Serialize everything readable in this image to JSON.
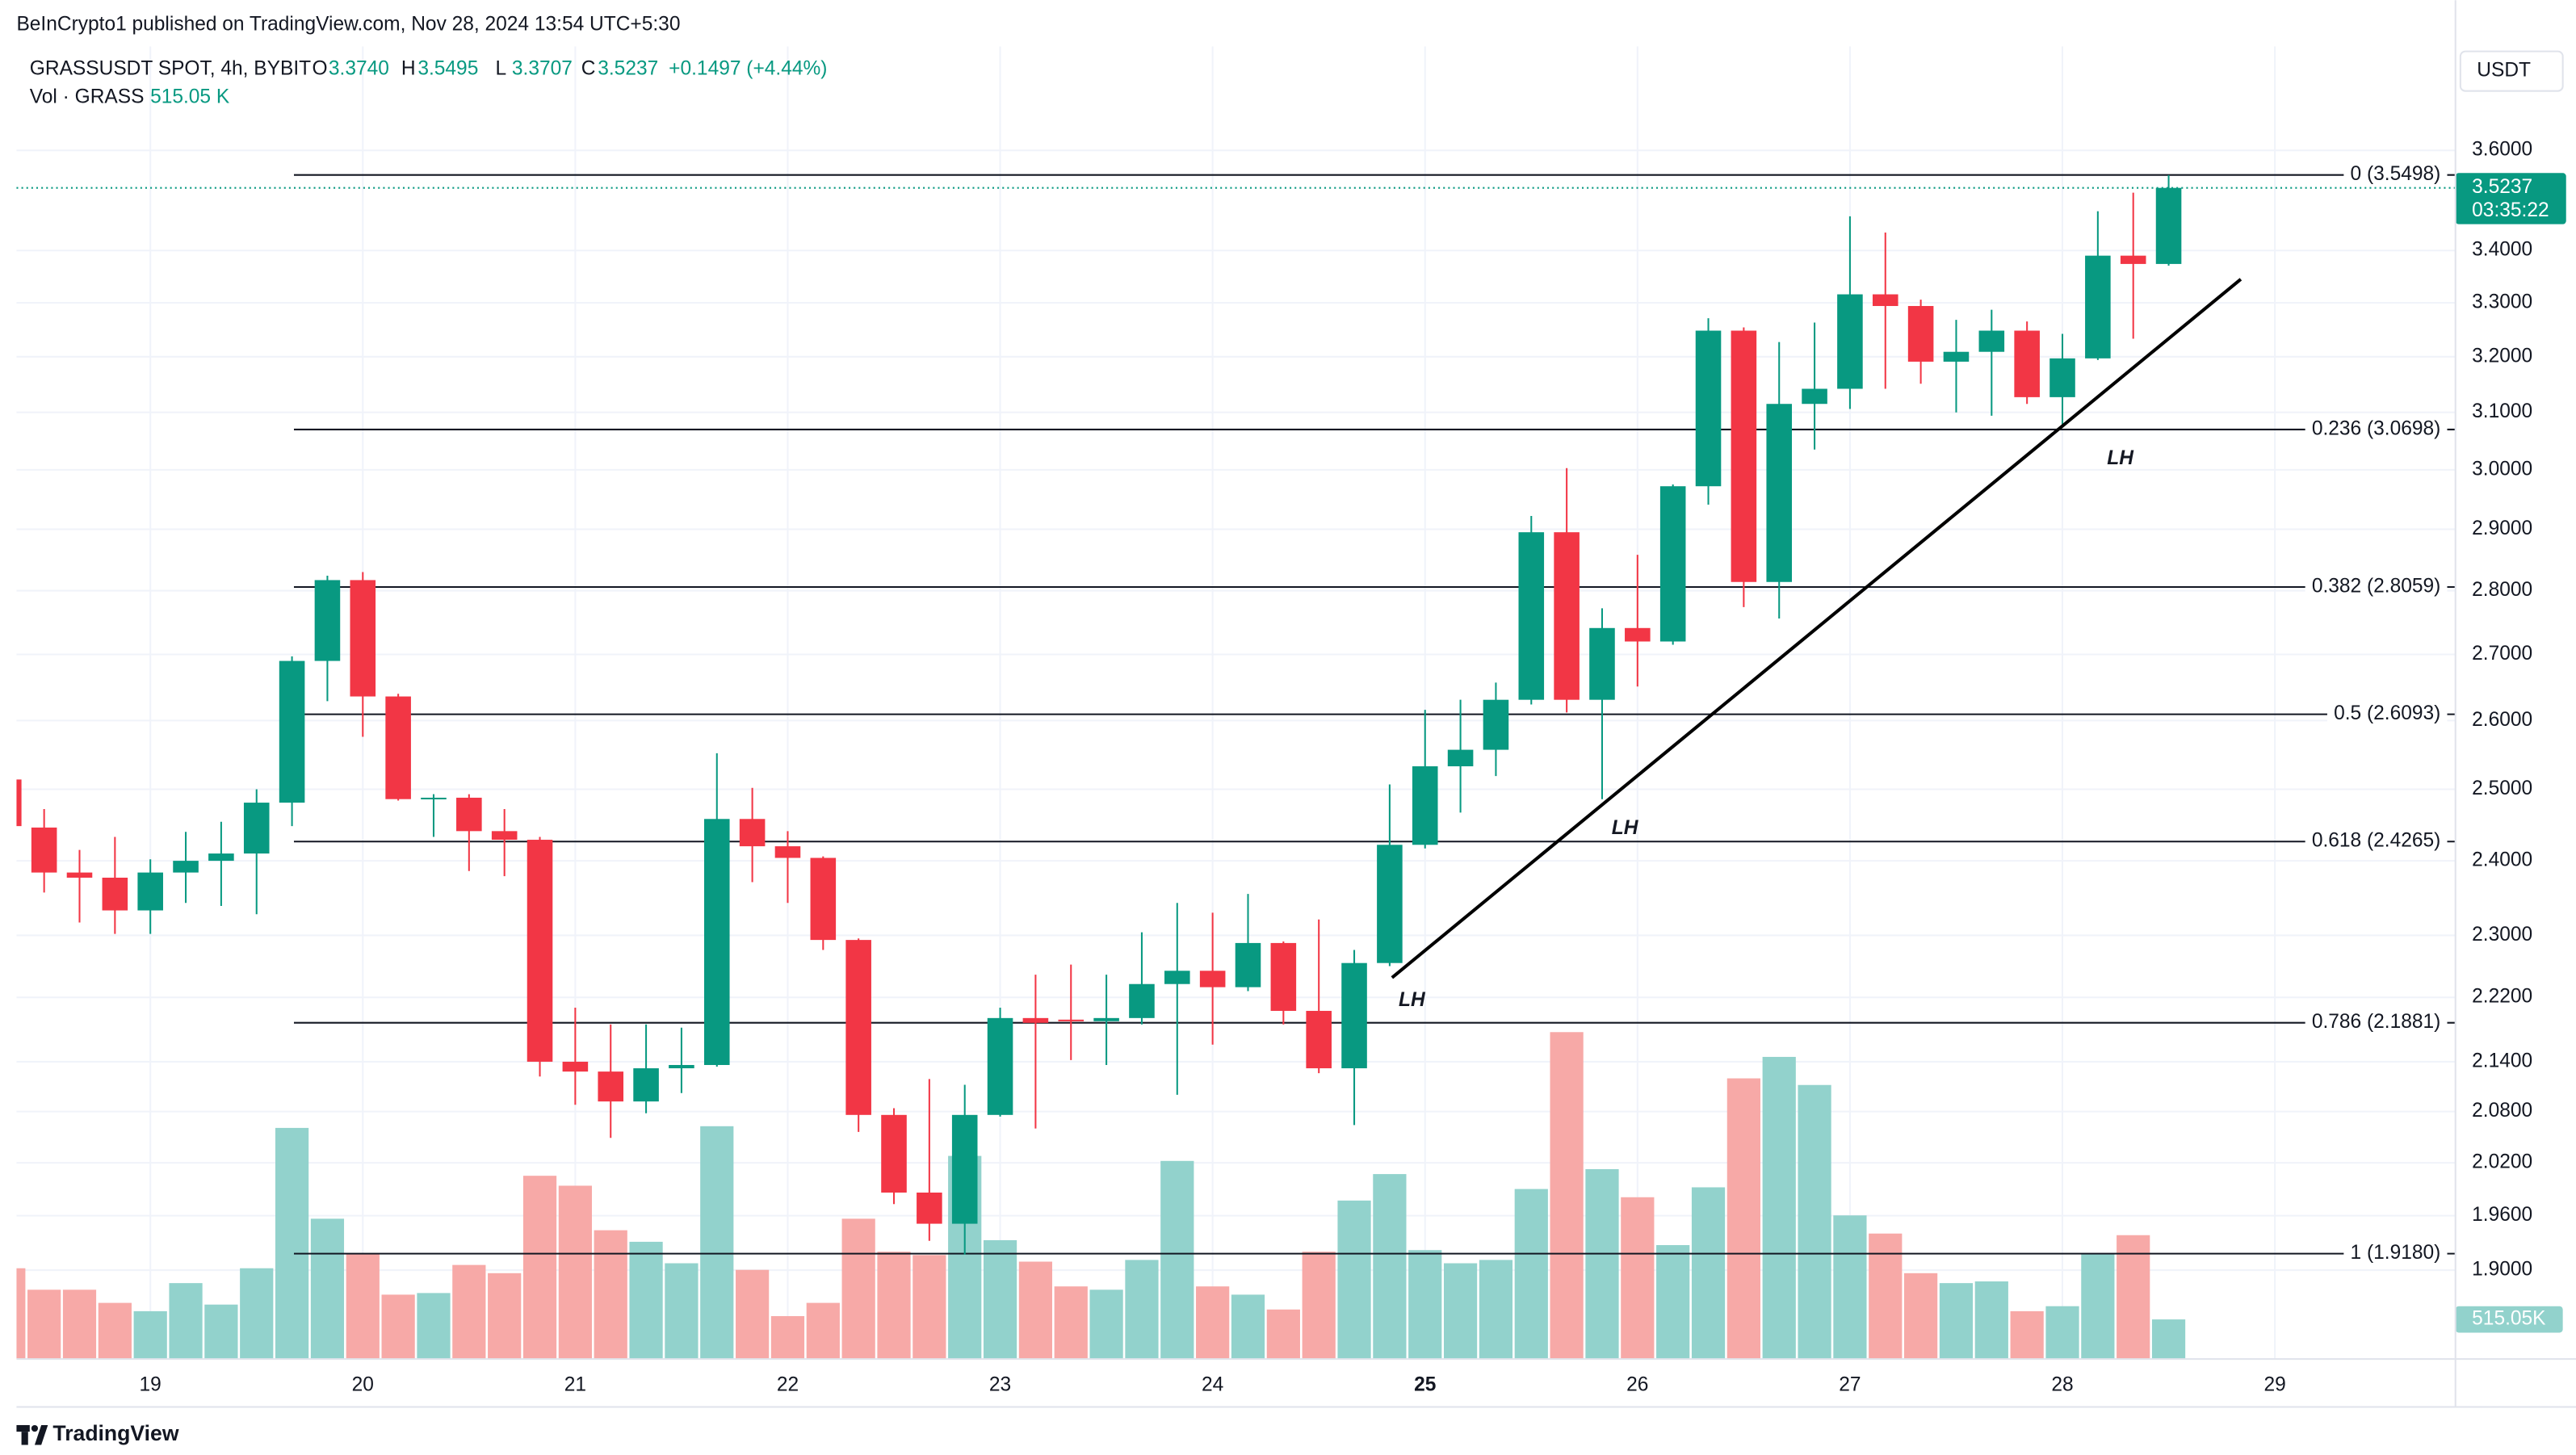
{
  "header": {
    "published": "BeInCrypto1 published on TradingView.com, Nov 28, 2024 13:54 UTC+5:30",
    "symbol": "GRASSUSDT SPOT, 4h, BYBIT",
    "ohlc": [
      {
        "key": "O",
        "value": "3.3740"
      },
      {
        "key": "H",
        "value": "3.5495"
      },
      {
        "key": "L",
        "value": "3.3707"
      },
      {
        "key": "C",
        "value": "3.5237"
      }
    ],
    "change": "+0.1497 (+4.44%)",
    "volume_title": "Vol · GRASS",
    "volume_value": "515.05 K",
    "currency": "USDT",
    "brand": "TradingView"
  },
  "chart_data": {
    "type": "candlestick",
    "open": [
      2.514,
      2.446,
      2.384,
      2.377,
      2.333,
      2.384,
      2.4,
      2.41,
      2.481,
      2.69,
      2.817,
      2.636,
      2.486,
      2.488,
      2.441,
      2.429,
      2.14,
      2.128,
      2.092,
      2.132,
      2.136,
      2.458,
      2.42,
      2.404,
      2.294,
      2.076,
      1.986,
      1.951,
      2.076,
      2.194,
      2.192,
      2.19,
      2.194,
      2.237,
      2.254,
      2.233,
      2.29,
      2.203,
      2.132,
      2.264,
      2.422,
      2.533,
      2.557,
      2.631,
      2.895,
      2.631,
      2.741,
      2.72,
      2.972,
      3.248,
      2.814,
      3.115,
      3.142,
      3.316,
      3.294,
      3.191,
      3.209,
      3.248,
      3.127,
      3.197,
      3.39,
      3.374
    ],
    "high": [
      2.519,
      2.472,
      2.415,
      2.433,
      2.402,
      2.44,
      2.454,
      2.5,
      2.697,
      2.824,
      2.83,
      2.64,
      2.493,
      2.493,
      2.472,
      2.433,
      2.207,
      2.186,
      2.186,
      2.182,
      2.552,
      2.502,
      2.441,
      2.406,
      2.296,
      2.084,
      2.119,
      2.112,
      2.207,
      2.249,
      2.262,
      2.249,
      2.304,
      2.343,
      2.33,
      2.355,
      2.292,
      2.321,
      2.281,
      2.507,
      2.616,
      2.631,
      2.657,
      2.922,
      3.003,
      2.772,
      2.858,
      2.975,
      3.271,
      3.254,
      3.227,
      3.263,
      3.467,
      3.435,
      3.306,
      3.268,
      3.287,
      3.265,
      3.242,
      3.477,
      3.514,
      3.5495
    ],
    "low": [
      2.443,
      2.357,
      2.317,
      2.302,
      2.302,
      2.343,
      2.339,
      2.328,
      2.448,
      2.629,
      2.576,
      2.484,
      2.433,
      2.386,
      2.379,
      2.122,
      2.088,
      2.049,
      2.078,
      2.102,
      2.134,
      2.371,
      2.343,
      2.281,
      2.056,
      1.973,
      1.932,
      1.917,
      2.074,
      2.06,
      2.142,
      2.136,
      2.186,
      2.1,
      2.161,
      2.228,
      2.186,
      2.126,
      2.064,
      2.26,
      2.417,
      2.467,
      2.519,
      2.624,
      2.612,
      2.486,
      2.651,
      2.715,
      2.941,
      2.774,
      2.756,
      3.035,
      3.106,
      3.142,
      3.151,
      3.1,
      3.094,
      3.115,
      3.076,
      3.194,
      3.233,
      3.3707
    ],
    "close": [
      2.448,
      2.384,
      2.377,
      2.333,
      2.384,
      2.4,
      2.41,
      2.481,
      2.69,
      2.817,
      2.636,
      2.486,
      2.488,
      2.441,
      2.429,
      2.14,
      2.128,
      2.092,
      2.132,
      2.136,
      2.458,
      2.42,
      2.404,
      2.294,
      2.076,
      1.986,
      1.951,
      2.076,
      2.194,
      2.188,
      2.19,
      2.194,
      2.237,
      2.254,
      2.233,
      2.29,
      2.203,
      2.132,
      2.264,
      2.422,
      2.533,
      2.557,
      2.631,
      2.895,
      2.631,
      2.741,
      2.72,
      2.972,
      3.248,
      2.814,
      3.115,
      3.142,
      3.316,
      3.294,
      3.191,
      3.209,
      3.248,
      3.127,
      3.197,
      3.39,
      3.374,
      3.5237
    ],
    "volume": [
      1180000,
      901000,
      901000,
      730000,
      622000,
      987000,
      708000,
      1180000,
      3004000,
      1824000,
      1373000,
      837000,
      858000,
      1223000,
      1116000,
      2382000,
      2253000,
      1674000,
      1524000,
      1245000,
      3026000,
      1159000,
      558000,
      730000,
      1824000,
      1395000,
      1352000,
      2640000,
      1545000,
      1266000,
      944000,
      901000,
      1288000,
      2575000,
      944000,
      837000,
      644000,
      1395000,
      2060000,
      2404000,
      1416000,
      1245000,
      1288000,
      2210000,
      4249000,
      2468000,
      2103000,
      1481000,
      2232000,
      3648000,
      3927000,
      3562000,
      1867000,
      1631000,
      1116000,
      987000,
      1009000,
      622000,
      687000,
      1373000,
      1610000,
      515050
    ],
    "volume_axis_label": "515.05K",
    "last_price_label": "3.5237",
    "countdown": "03:35:22",
    "up_color": "#089981",
    "down_color": "#f23645",
    "vol_up_color": "#92d2cc",
    "vol_down_color": "#f7a9a7",
    "log_scale": true,
    "grid": true,
    "xlim": [
      0.22,
      69.1
    ],
    "xticks": [
      {
        "value": 4,
        "label": "19"
      },
      {
        "value": 10,
        "label": "20"
      },
      {
        "value": 16,
        "label": "21"
      },
      {
        "value": 22,
        "label": "22"
      },
      {
        "value": 28,
        "label": "23"
      },
      {
        "value": 34,
        "label": "24"
      },
      {
        "value": 40,
        "label": "25",
        "bold": true
      },
      {
        "value": 46,
        "label": "26"
      },
      {
        "value": 52,
        "label": "27"
      },
      {
        "value": 58,
        "label": "28"
      },
      {
        "value": 64,
        "label": "29"
      }
    ],
    "ylim": [
      1.806,
      3.82
    ],
    "yticks": [
      {
        "value": 3.6,
        "label": "3.6000"
      },
      {
        "value": 3.4,
        "label": "3.4000"
      },
      {
        "value": 3.3,
        "label": "3.3000"
      },
      {
        "value": 3.2,
        "label": "3.2000"
      },
      {
        "value": 3.1,
        "label": "3.1000"
      },
      {
        "value": 3.0,
        "label": "3.0000"
      },
      {
        "value": 2.9,
        "label": "2.9000"
      },
      {
        "value": 2.8,
        "label": "2.8000"
      },
      {
        "value": 2.7,
        "label": "2.7000"
      },
      {
        "value": 2.6,
        "label": "2.6000"
      },
      {
        "value": 2.5,
        "label": "2.5000"
      },
      {
        "value": 2.4,
        "label": "2.4000"
      },
      {
        "value": 2.3,
        "label": "2.3000"
      },
      {
        "value": 2.22,
        "label": "2.2200"
      },
      {
        "value": 2.14,
        "label": "2.1400"
      },
      {
        "value": 2.08,
        "label": "2.0800"
      },
      {
        "value": 2.02,
        "label": "2.0200"
      },
      {
        "value": 1.96,
        "label": "1.9600"
      },
      {
        "value": 1.9,
        "label": "1.9000"
      }
    ],
    "vol_ylim": [
      0,
      17060000
    ],
    "fib_levels": [
      {
        "value": 3.5498,
        "label": "0 (3.5498)"
      },
      {
        "value": 3.0698,
        "label": "0.236 (3.0698)"
      },
      {
        "value": 2.8059,
        "label": "0.382 (2.8059)"
      },
      {
        "value": 2.6093,
        "label": "0.5 (2.6093)"
      },
      {
        "value": 2.4265,
        "label": "0.618 (2.4265)"
      },
      {
        "value": 2.1881,
        "label": "0.786 (2.1881)"
      },
      {
        "value": 1.918,
        "label": "1 (1.9180)"
      }
    ],
    "annotations": [
      "LH",
      "LH",
      "LH"
    ]
  }
}
